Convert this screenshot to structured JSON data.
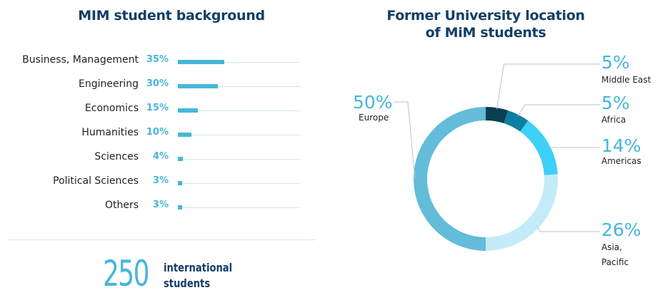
{
  "bar_chart": {
    "title": "MIM student background"
  },
  "donut_chart": {
    "title_line1": "Former University location",
    "title_line2": "of MiM students"
  },
  "summary": {
    "number": "250",
    "caption_line1": "international",
    "caption_line2": "students"
  },
  "colors": {
    "title": "#123f68",
    "bar": "#47b6da",
    "europe": "#63bcd9",
    "middle_east": "#0b3f50",
    "africa": "#0a7fa1",
    "americas": "#3fd0f7",
    "asia_pacific": "#c3ecf8",
    "accent": "#47b6da"
  },
  "chart_data": [
    {
      "type": "bar",
      "orientation": "horizontal",
      "title": "MIM student background",
      "categories": [
        "Business, Management",
        "Engineering",
        "Economics",
        "Humanities",
        "Sciences",
        "Political Sciences",
        "Others"
      ],
      "values": [
        35,
        30,
        15,
        10,
        4,
        3,
        3
      ],
      "value_labels": [
        "35%",
        "30%",
        "15%",
        "10%",
        "4%",
        "3%",
        "3%"
      ],
      "unit": "%"
    },
    {
      "type": "pie",
      "style": "donut",
      "title": "Former University location of MiM students",
      "slices": [
        {
          "label": "Middle East",
          "value": 5,
          "value_label": "5%",
          "color": "#0b3f50"
        },
        {
          "label": "Africa",
          "value": 5,
          "value_label": "5%",
          "color": "#0a7fa1"
        },
        {
          "label": "Americas",
          "value": 14,
          "value_label": "14%",
          "color": "#3fd0f7"
        },
        {
          "label": "Asia, Pacific",
          "value": 26,
          "value_label": "26%",
          "color": "#c3ecf8"
        },
        {
          "label": "Europe",
          "value": 50,
          "value_label": "50%",
          "color": "#63bcd9"
        }
      ]
    }
  ]
}
